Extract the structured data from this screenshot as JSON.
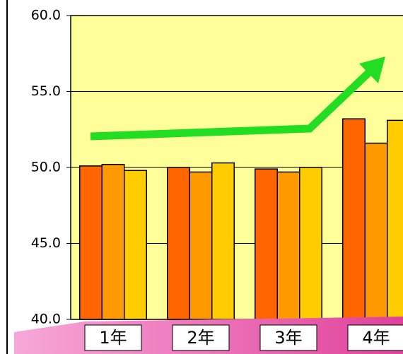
{
  "chart_data": {
    "type": "bar",
    "categories": [
      "1年",
      "2年",
      "3年",
      "4年"
    ],
    "series": [
      {
        "color": "#ff6600",
        "values": [
          50.1,
          50.0,
          49.9,
          53.2
        ]
      },
      {
        "color": "#ff9900",
        "values": [
          50.2,
          49.7,
          49.7,
          51.6
        ]
      },
      {
        "color": "#ffcc00",
        "values": [
          49.8,
          50.3,
          50.0,
          53.1
        ]
      }
    ],
    "ylim": [
      40,
      60
    ],
    "yticks": [
      {
        "value": 40,
        "label": "40.0"
      },
      {
        "value": 45,
        "label": "45.0"
      },
      {
        "value": 50,
        "label": "50.0"
      },
      {
        "value": 55,
        "label": "55.0"
      },
      {
        "value": 60,
        "label": "60.0"
      }
    ],
    "grid": true
  }
}
